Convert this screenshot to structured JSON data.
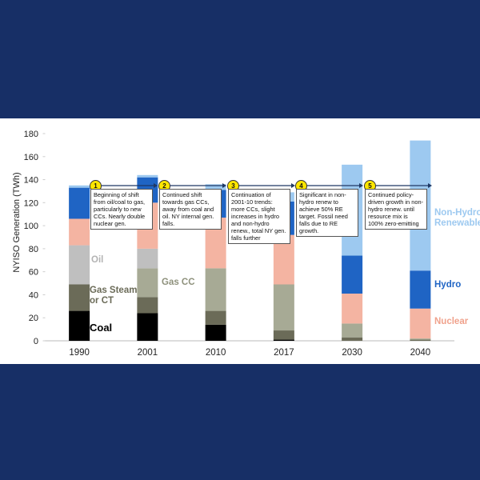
{
  "chart_data": {
    "type": "stacked-bar",
    "y_label": "NYISO Generation (TWh)",
    "categories": [
      "1990",
      "2001",
      "2010",
      "2017",
      "2030",
      "2040"
    ],
    "ylim": [
      0,
      180
    ],
    "yticks": [
      0,
      20,
      40,
      60,
      80,
      100,
      120,
      140,
      160,
      180
    ],
    "series": [
      {
        "name": "Coal",
        "color": "#000000",
        "values": [
          26,
          24,
          14,
          1,
          0,
          0
        ]
      },
      {
        "name": "Gas Steam or CT",
        "color": "#6b6b58",
        "values": [
          23,
          14,
          12,
          8,
          3,
          1
        ]
      },
      {
        "name": "Gas CC",
        "color": "#a7aa95",
        "values": [
          0,
          25,
          37,
          40,
          12,
          1
        ]
      },
      {
        "name": "Oil",
        "color": "#bfbfbf",
        "values": [
          34,
          17,
          0,
          0,
          0,
          0
        ]
      },
      {
        "name": "Nuclear",
        "color": "#f4b4a2",
        "values": [
          23,
          40,
          44,
          43,
          26,
          26
        ]
      },
      {
        "name": "Hydro",
        "color": "#1f64c4",
        "values": [
          27,
          22,
          24,
          29,
          33,
          33
        ]
      },
      {
        "name": "Non-Hydro Renewable",
        "color": "#9dc9f0",
        "values": [
          2,
          2,
          5,
          8,
          79,
          113
        ]
      }
    ],
    "annotations": [
      {
        "number": "1",
        "text": "Beginning of shift from oil/coal to gas, particularly to new CCs. Nearly double nuclear gen."
      },
      {
        "number": "2",
        "text": "Continued shift towards gas CCs, away from coal and oil. NY internal gen. falls."
      },
      {
        "number": "3",
        "text": "Continuation of 2001-10 trends:  more CCs, slight increases in hydro and non-hydro renew., total NY gen. falls further"
      },
      {
        "number": "4",
        "text": "Significant in non-hydro renew to achieve 50% RE target. Fossil need falls due to RE growth."
      },
      {
        "number": "5",
        "text": "Continued policy-driven growth in non-hydro renew. until resource mix is 100% zero-emitting"
      }
    ]
  }
}
